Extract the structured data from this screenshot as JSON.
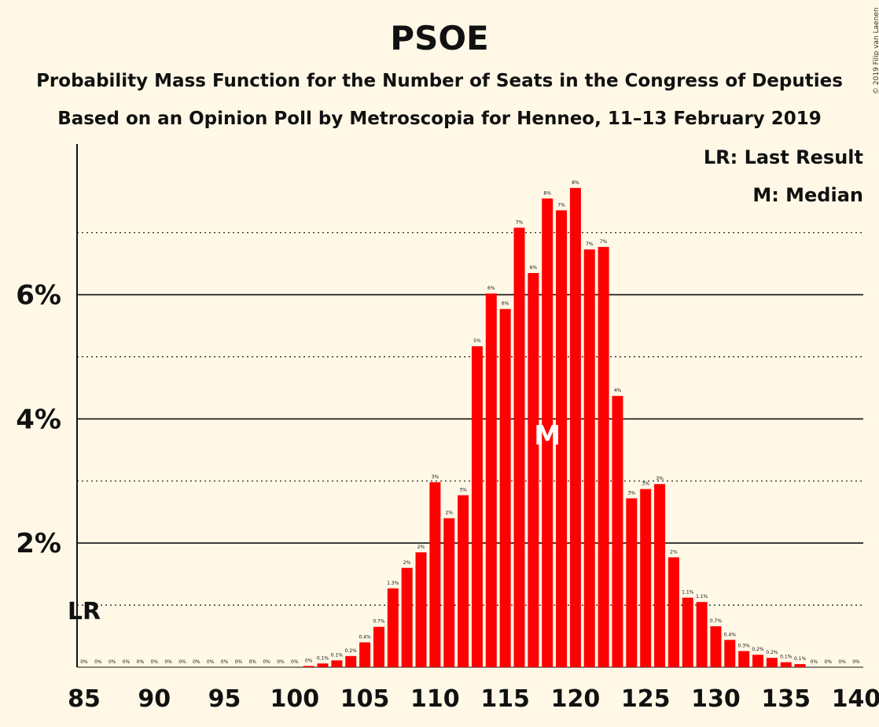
{
  "header": {
    "title": "PSOE",
    "subtitle1": "Probability Mass Function for the Number of Seats in the Congress of Deputies",
    "subtitle2": "Based on an Opinion Poll by Metroscopia for Henneo, 11–13 February 2019",
    "copyright": "© 2019 Filip van Laenen"
  },
  "legend": {
    "last_result": "LR: Last Result",
    "median": "M: Median"
  },
  "colors": {
    "background": "#fff8e6",
    "bar": "#ff0000",
    "text": "#111111"
  },
  "chart_data": {
    "type": "bar",
    "title": "PSOE",
    "x": [
      85,
      86,
      87,
      88,
      89,
      90,
      91,
      92,
      93,
      94,
      95,
      96,
      97,
      98,
      99,
      100,
      101,
      102,
      103,
      104,
      105,
      106,
      107,
      108,
      109,
      110,
      111,
      112,
      113,
      114,
      115,
      116,
      117,
      118,
      119,
      120,
      121,
      122,
      123,
      124,
      125,
      126,
      127,
      128,
      129,
      130,
      131,
      132,
      133,
      134,
      135,
      136,
      137,
      138,
      139,
      140
    ],
    "values": [
      0,
      0,
      0,
      0,
      0,
      0,
      0,
      0,
      0,
      0,
      0,
      0,
      0,
      0,
      0,
      0,
      0.02,
      0.06,
      0.11,
      0.18,
      0.4,
      0.65,
      1.27,
      1.6,
      1.85,
      2.98,
      2.4,
      2.77,
      5.17,
      6.02,
      5.77,
      7.08,
      6.35,
      7.55,
      7.36,
      7.72,
      6.73,
      6.77,
      4.37,
      2.72,
      2.87,
      2.95,
      1.77,
      1.12,
      1.05,
      0.66,
      0.44,
      0.26,
      0.2,
      0.15,
      0.08,
      0.05,
      0,
      0,
      0,
      0
    ],
    "labels": [
      "0%",
      "0%",
      "0%",
      "0%",
      "0%",
      "0%",
      "0%",
      "0%",
      "0%",
      "0%",
      "0%",
      "0%",
      "0%",
      "0%",
      "0%",
      "0%",
      "0%",
      "0.1%",
      "0.1%",
      "0.2%",
      "0.4%",
      "0.7%",
      "1.3%",
      "2%",
      "2%",
      "3%",
      "2%",
      "3%",
      "5%",
      "6%",
      "6%",
      "7%",
      "6%",
      "8%",
      "7%",
      "8%",
      "7%",
      "7%",
      "4%",
      "3%",
      "3%",
      "3%",
      "2%",
      "1.1%",
      "1.1%",
      "0.7%",
      "0.4%",
      "0.3%",
      "0.2%",
      "0.2%",
      "0.1%",
      "0.1%",
      "0%",
      "0%",
      "0%",
      "0%"
    ],
    "x_ticks": [
      "85",
      "90",
      "95",
      "100",
      "105",
      "110",
      "115",
      "120",
      "125",
      "130",
      "135",
      "140"
    ],
    "y_ticks": [
      "2%",
      "4%",
      "6%"
    ],
    "ylim": [
      0,
      7.7
    ],
    "last_result_seat": 85,
    "last_result_label": "LR",
    "median_seat": 118,
    "median_label": "M",
    "grid": true
  }
}
